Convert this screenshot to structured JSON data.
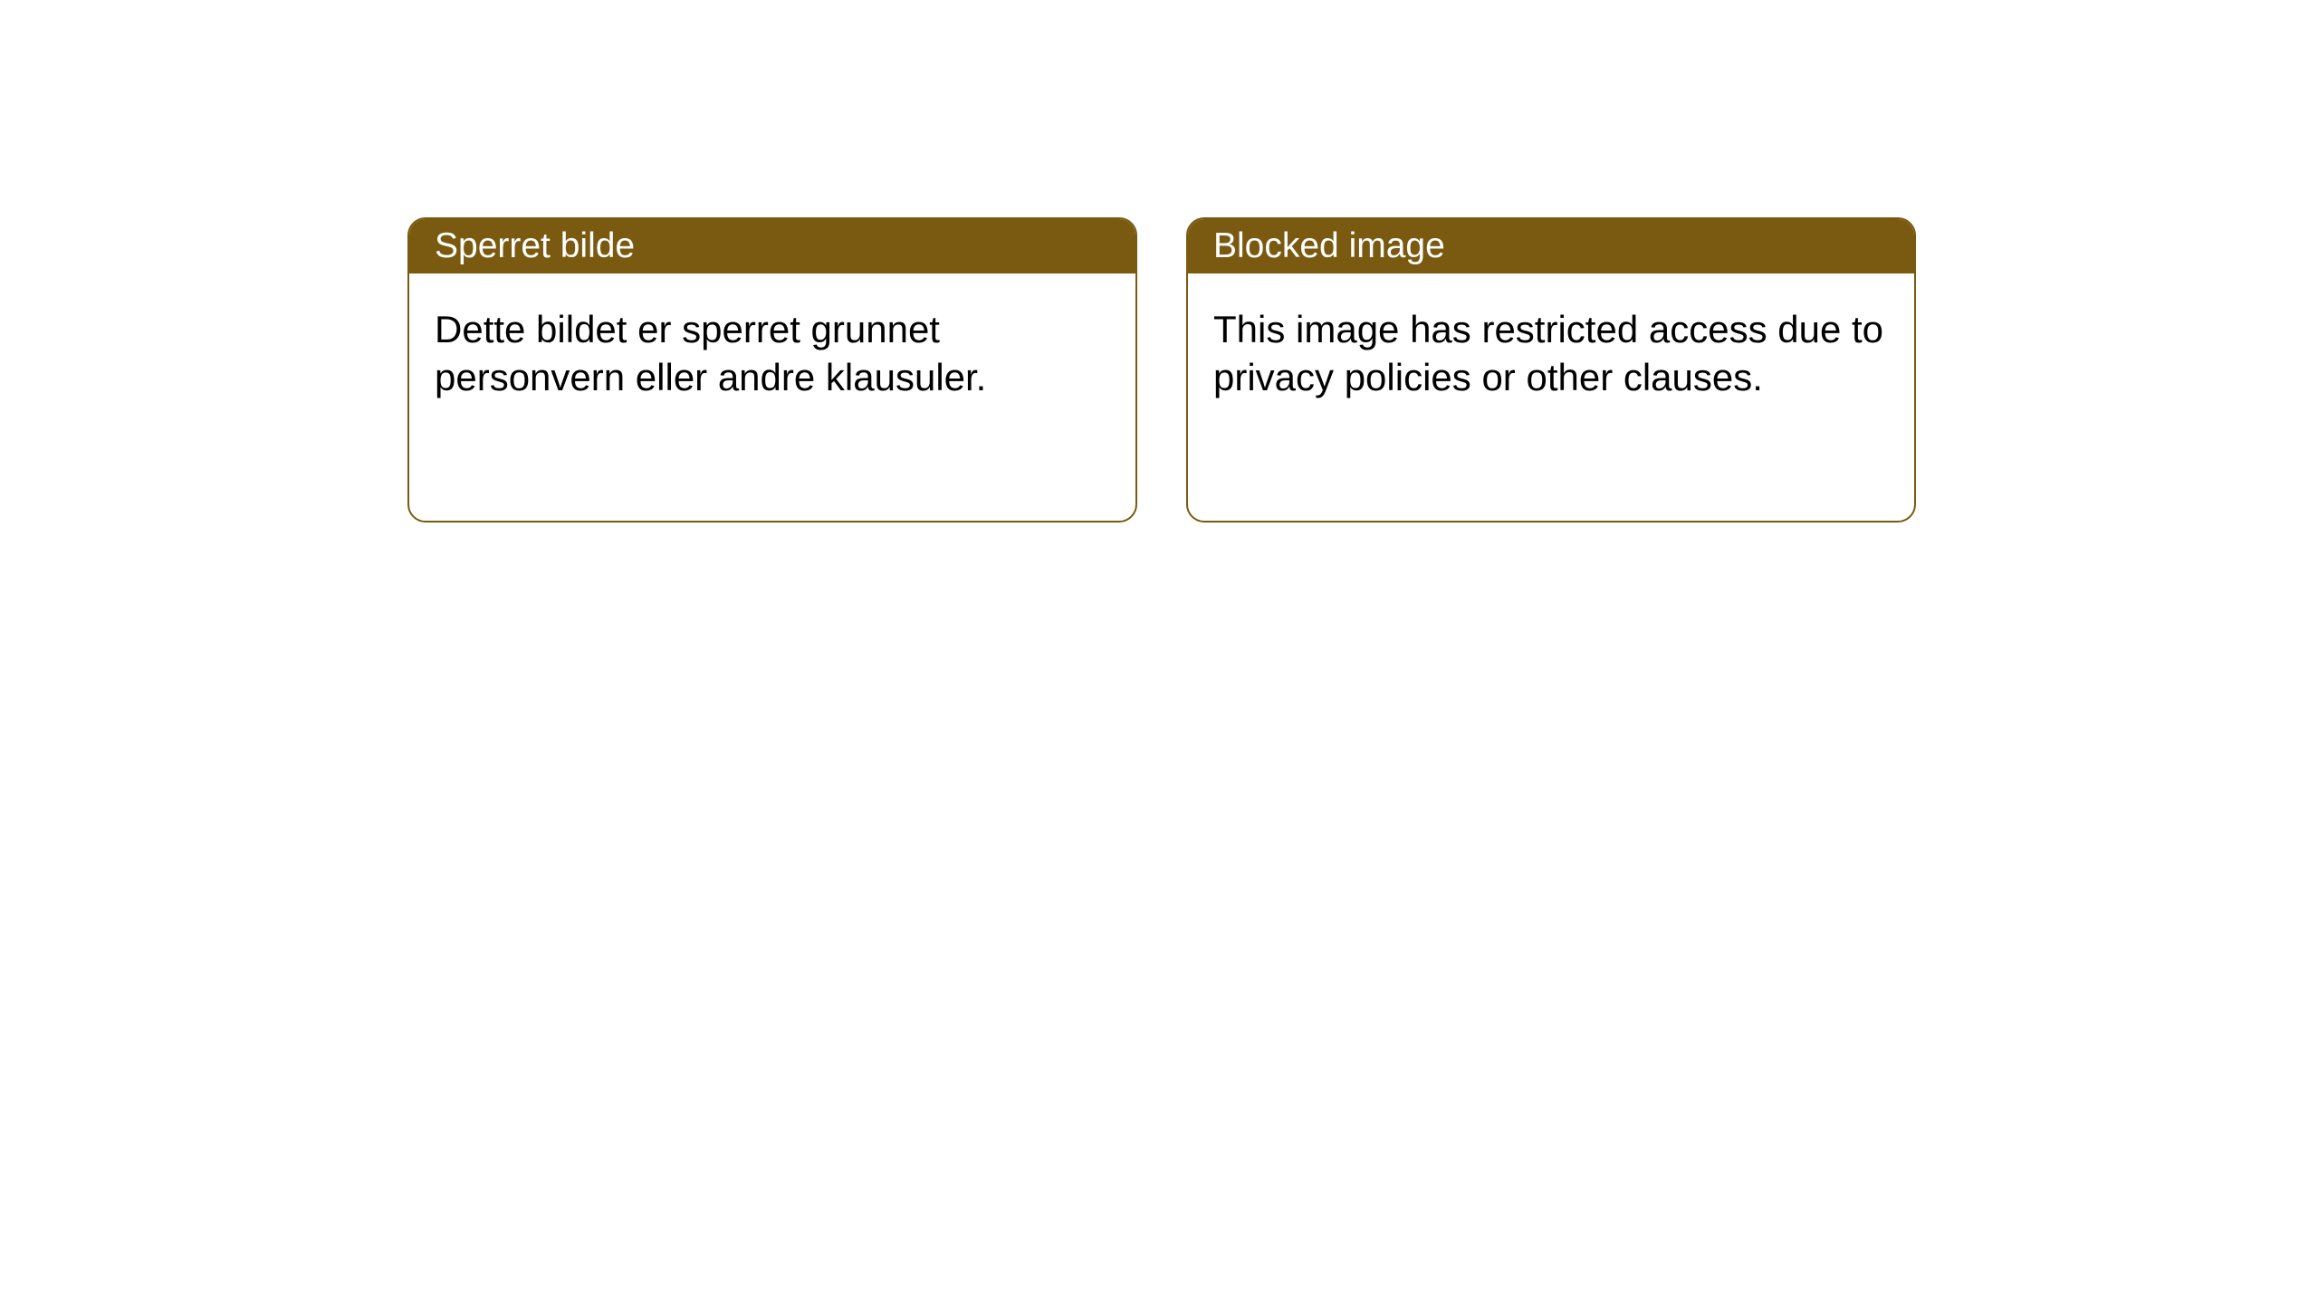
{
  "layout": {
    "background_color": "#ffffff",
    "card_border_color": "#7a5a10",
    "card_border_width": 2,
    "card_border_radius": 20,
    "header_background_color": "#7a5a10",
    "header_text_color": "#ffffff",
    "body_text_color": "#000000",
    "header_fontsize": 39,
    "body_fontsize": 42
  },
  "cards": {
    "left": {
      "title": "Sperret bilde",
      "body": "Dette bildet er sperret grunnet personvern eller andre klausuler."
    },
    "right": {
      "title": "Blocked image",
      "body": "This image has restricted access due to privacy policies or other clauses."
    }
  }
}
